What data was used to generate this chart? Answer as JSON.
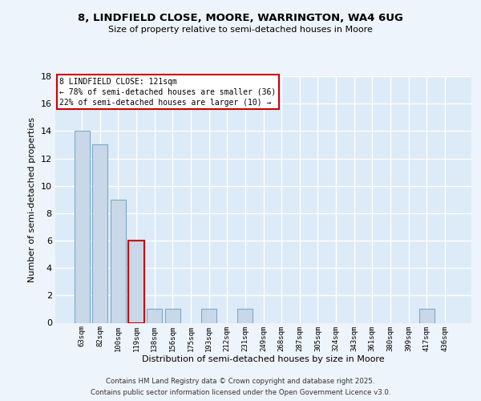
{
  "title": "8, LINDFIELD CLOSE, MOORE, WARRINGTON, WA4 6UG",
  "subtitle": "Size of property relative to semi-detached houses in Moore",
  "xlabel": "Distribution of semi-detached houses by size in Moore",
  "ylabel": "Number of semi-detached properties",
  "categories": [
    "63sqm",
    "82sqm",
    "100sqm",
    "119sqm",
    "138sqm",
    "156sqm",
    "175sqm",
    "193sqm",
    "212sqm",
    "231sqm",
    "249sqm",
    "268sqm",
    "287sqm",
    "305sqm",
    "324sqm",
    "343sqm",
    "361sqm",
    "380sqm",
    "399sqm",
    "417sqm",
    "436sqm"
  ],
  "values": [
    14,
    13,
    9,
    6,
    1,
    1,
    0,
    1,
    0,
    1,
    0,
    0,
    0,
    0,
    0,
    0,
    0,
    0,
    0,
    1,
    0
  ],
  "bar_color": "#c8d8e8",
  "bar_edge_color": "#7baac8",
  "highlight_bar_index": 3,
  "highlight_edge_color": "#cc0000",
  "annotation_title": "8 LINDFIELD CLOSE: 121sqm",
  "annotation_line1": "← 78% of semi-detached houses are smaller (36)",
  "annotation_line2": "22% of semi-detached houses are larger (10) →",
  "annotation_box_edge_color": "#cc0000",
  "ylim": [
    0,
    18
  ],
  "yticks": [
    0,
    2,
    4,
    6,
    8,
    10,
    12,
    14,
    16,
    18
  ],
  "background_color": "#eef4fb",
  "plot_bg_color": "#ddeaf7",
  "grid_color": "#ffffff",
  "footer_line1": "Contains HM Land Registry data © Crown copyright and database right 2025.",
  "footer_line2": "Contains public sector information licensed under the Open Government Licence v3.0."
}
